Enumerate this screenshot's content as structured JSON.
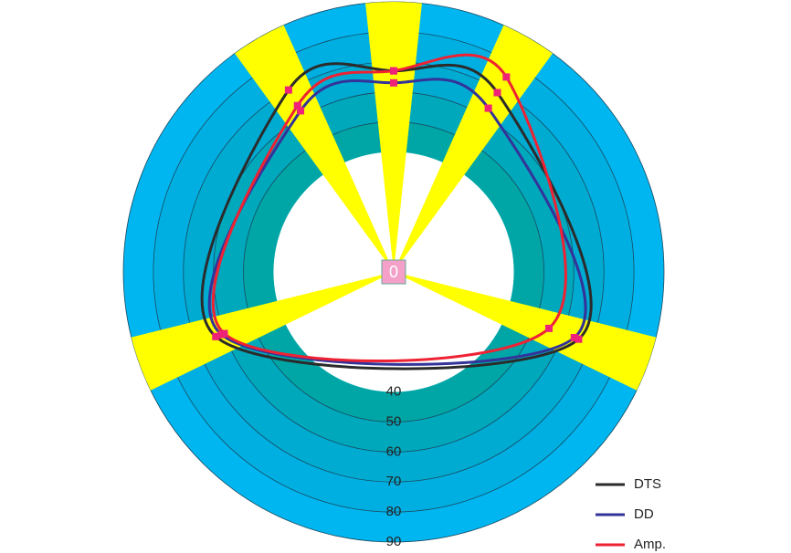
{
  "chart_data": {
    "type": "polar-line",
    "center_label": "0",
    "theta": [
      0,
      30,
      110,
      250,
      330
    ],
    "rlim": [
      0,
      90
    ],
    "rticks": [
      40,
      50,
      60,
      70,
      80,
      90
    ],
    "band_colors": [
      "#00a6a6",
      "#00a8bc",
      "#00abd2",
      "#00afe2",
      "#00b6f0"
    ],
    "highlight_color": "#ffff00",
    "series": [
      {
        "name": "DTS",
        "color": "#2b2b2b",
        "values": [
          67,
          69,
          65.5,
          63,
          70
        ]
      },
      {
        "name": "DD",
        "color": "#333399",
        "values": [
          63,
          63,
          64,
          61,
          62
        ]
      },
      {
        "name": "Amp.",
        "color": "#ee2233",
        "values": [
          67,
          75,
          55,
          60,
          64
        ]
      }
    ],
    "marker_color": "#ee2277"
  }
}
